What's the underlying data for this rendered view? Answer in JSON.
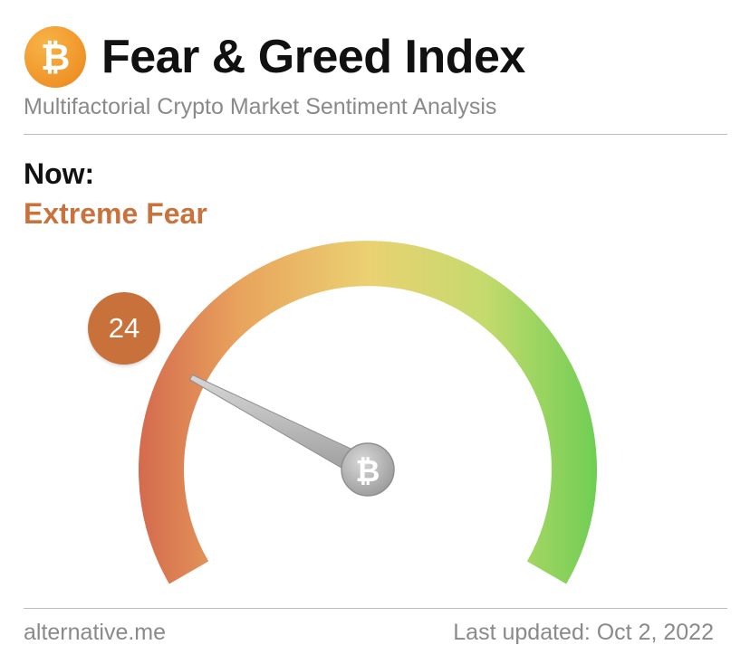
{
  "header": {
    "title": "Fear & Greed Index",
    "logo_icon": "bitcoin-logo-icon",
    "logo_glyph": "₿",
    "logo_color": "#f39a2b"
  },
  "subtitle": "Multifactorial Crypto Market Sentiment Analysis",
  "now": {
    "label": "Now:",
    "classification": "Extreme Fear",
    "classification_color": "#c8733e"
  },
  "gauge": {
    "value": 24,
    "value_label": "24",
    "min": 0,
    "max": 100,
    "badge_color": "#c8713a",
    "hub_icon": "bitcoin-hub-icon",
    "hub_glyph": "₿",
    "colors": [
      "#d06a4a",
      "#e8a95e",
      "#e9cf73",
      "#c9da6f",
      "#73cf55"
    ]
  },
  "footer": {
    "source": "alternative.me",
    "last_updated": "Last updated: Oct 2, 2022"
  }
}
